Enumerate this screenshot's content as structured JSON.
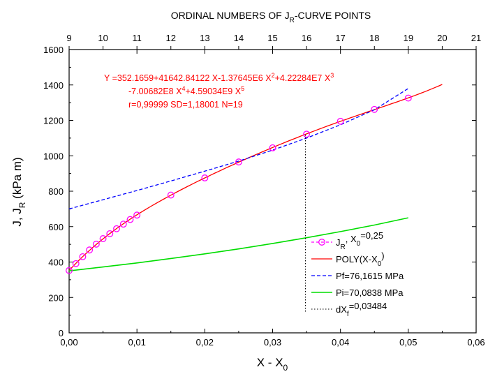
{
  "chart_data": {
    "type": "line",
    "title": "",
    "top_axis_title": "ORDINAL NUMBERS OF  J",
    "top_axis_title_sub": "R",
    "top_axis_title_end": "-CURVE POINTS",
    "xlabel": "X - X",
    "xlabel_sub": "0",
    "ylabel": "J, J",
    "ylabel_sub": "R",
    "ylabel_end": " (kPa m)",
    "xlim": [
      0,
      0.06
    ],
    "ylim": [
      0,
      1600
    ],
    "x_ticks": [
      "0,00",
      "0,01",
      "0,02",
      "0,03",
      "0,04",
      "0,05",
      "0,06"
    ],
    "x_tick_values": [
      0,
      0.01,
      0.02,
      0.03,
      0.04,
      0.05,
      0.06
    ],
    "y_ticks": [
      "0",
      "200",
      "400",
      "600",
      "800",
      "1000",
      "1200",
      "1400",
      "1600"
    ],
    "y_tick_values": [
      0,
      200,
      400,
      600,
      800,
      1000,
      1200,
      1400,
      1600
    ],
    "top_ticks": [
      "9",
      "10",
      "11",
      "12",
      "13",
      "14",
      "15",
      "16",
      "17",
      "18",
      "19",
      "20",
      "21"
    ],
    "top_range": [
      9,
      21
    ],
    "equation": {
      "line1_a": "Y =352.1659+41642.84122 X-1.37645E6 X",
      "line1_sup1": "2",
      "line1_b": "+4.22284E7 X",
      "line1_sup2": "3",
      "line2_a": "-7.00682E8 X",
      "line2_sup1": "4",
      "line2_b": "+4.59034E9 X",
      "line2_sup2": "5",
      "line3": "r=0,99999   SD=1,18001   N=19"
    },
    "series": [
      {
        "name": "J_R, X_0=0,25",
        "kind": "markers",
        "color": "#ff00ff",
        "x": [
          0,
          0.001,
          0.002,
          0.003,
          0.004,
          0.005,
          0.006,
          0.007,
          0.008,
          0.009,
          0.01,
          0.015,
          0.02,
          0.025,
          0.03,
          0.035,
          0.04,
          0.045,
          0.05
        ],
        "y": [
          352,
          391,
          430,
          468,
          501,
          532,
          560,
          588,
          614,
          640,
          665,
          778,
          875,
          965,
          1045,
          1122,
          1195,
          1262,
          1326
        ]
      },
      {
        "name": "POLY(X-X_0)",
        "kind": "poly",
        "color": "#ff0000",
        "coefficients": [
          352.1659,
          41642.84122,
          -1376450,
          42228400,
          -700682000,
          4590340000
        ],
        "x_range": [
          0,
          0.055
        ]
      },
      {
        "name": "Pf=76,1615 MPa",
        "kind": "dashed",
        "color": "#0000ff",
        "x": [
          0,
          0.005,
          0.01,
          0.015,
          0.02,
          0.025,
          0.03,
          0.035,
          0.04,
          0.045,
          0.05
        ],
        "y": [
          700,
          752,
          804,
          858,
          913,
          970,
          1032,
          1100,
          1175,
          1260,
          1380
        ]
      },
      {
        "name": "Pi=70,0838 MPa",
        "kind": "solid",
        "color": "#00dd00",
        "x": [
          0,
          0.005,
          0.01,
          0.015,
          0.02,
          0.025,
          0.03,
          0.035,
          0.04,
          0.045,
          0.05
        ],
        "y": [
          350,
          372,
          395,
          420,
          446,
          474,
          505,
          537,
          572,
          609,
          650
        ]
      },
      {
        "name": "dX_f=0,03484",
        "kind": "vline",
        "color": "#000000",
        "x": [
          0.03484,
          0.03484
        ],
        "y": [
          120,
          1120
        ]
      }
    ],
    "legend": {
      "placement": "bottom-right",
      "entries": [
        {
          "label": "J",
          "sub": "R",
          "rest": ", X",
          "sub2": "0",
          "rest2": "=0,25"
        },
        {
          "label": "POLY(X-X",
          "sub": "0",
          "rest": ")",
          "sub2": "",
          "rest2": ""
        },
        {
          "label": "Pf=76,1615 MPa",
          "sub": "",
          "rest": "",
          "sub2": "",
          "rest2": ""
        },
        {
          "label": "Pi=70,0838 MPa",
          "sub": "",
          "rest": "",
          "sub2": "",
          "rest2": ""
        },
        {
          "label": "dX",
          "sub": "f",
          "rest": "=0,03484",
          "sub2": "",
          "rest2": ""
        }
      ]
    },
    "grid": false
  }
}
